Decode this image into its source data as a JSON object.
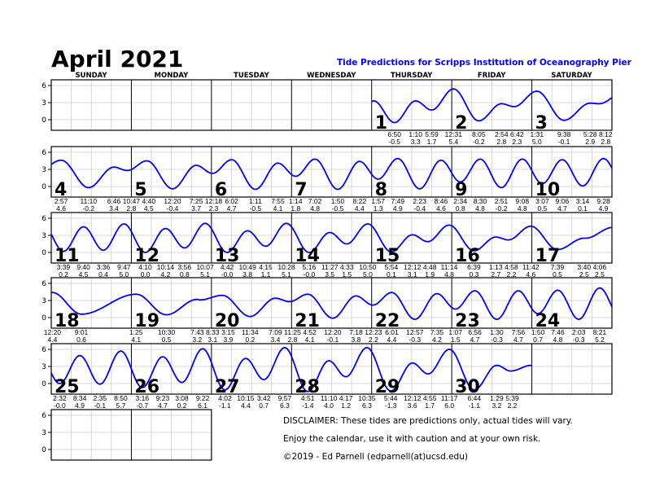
{
  "calendar": {
    "title": "April 2021",
    "subtitle": "Tide Predictions for Scripps Institution of Oceanography Pier",
    "subtitle_color": "#0000ff"
  },
  "weekdays": [
    "SUNDAY",
    "MONDAY",
    "TUESDAY",
    "WEDNESDAY",
    "THURSDAY",
    "FRIDAY",
    "SATURDAY"
  ],
  "disclaimer": [
    "DISCLAIMER: These tides are predictions only, actual tides will vary.",
    "Enjoy the calendar, use it with caution and at your own risk.",
    "©2019 - Ed Parnell (edparnell(at)ucsd.edu)"
  ],
  "chart_data": {
    "type": "line",
    "ylabel": "",
    "yticks": [
      "6",
      "3",
      "0"
    ],
    "ylim": [
      -1.6,
      7
    ],
    "line_color": "#0000ff",
    "grid": true,
    "first_weekday": "THURSDAY",
    "days": [
      {
        "day": "1",
        "tides": [
          [
            "6:50",
            "-0.5"
          ],
          [
            "1:10",
            "3.3"
          ],
          [
            "5:59",
            "1.7"
          ]
        ]
      },
      {
        "day": "2",
        "tides": [
          [
            "12:31",
            "5.4"
          ],
          [
            "8:05",
            "-0.2"
          ],
          [
            "2:54",
            "2.8"
          ],
          [
            "6:42",
            "2.3"
          ]
        ]
      },
      {
        "day": "3",
        "tides": [
          [
            "1:31",
            "5.0"
          ],
          [
            "9:38",
            "-0.1"
          ],
          [
            "5:28",
            "2.9"
          ],
          [
            "8:12",
            "2.8"
          ]
        ]
      },
      {
        "day": "4",
        "tides": [
          [
            "2:57",
            "4.6"
          ],
          [
            "11:10",
            "-0.2"
          ],
          [
            "6:46",
            "3.4"
          ],
          [
            "10:47",
            "2.8"
          ]
        ]
      },
      {
        "day": "5",
        "tides": [
          [
            "4:40",
            "4.5"
          ],
          [
            "12:20",
            "-0.4"
          ],
          [
            "7:25",
            "3.7"
          ]
        ]
      },
      {
        "day": "6",
        "tides": [
          [
            "12:18",
            "2.3"
          ],
          [
            "6:02",
            "4.7"
          ],
          [
            "1:11",
            "-0.5"
          ],
          [
            "7:55",
            "4.1"
          ]
        ]
      },
      {
        "day": "7",
        "tides": [
          [
            "1:14",
            "1.8"
          ],
          [
            "7:02",
            "4.8"
          ],
          [
            "1:50",
            "-0.5"
          ],
          [
            "8:22",
            "4.4"
          ]
        ]
      },
      {
        "day": "8",
        "tides": [
          [
            "1:57",
            "1.3"
          ],
          [
            "7:49",
            "4.9"
          ],
          [
            "2:23",
            "-0.4"
          ],
          [
            "8:46",
            "4.6"
          ]
        ]
      },
      {
        "day": "9",
        "tides": [
          [
            "2:34",
            "0.8"
          ],
          [
            "8:30",
            "4.8"
          ],
          [
            "2:51",
            "-0.2"
          ],
          [
            "9:08",
            "4.8"
          ]
        ]
      },
      {
        "day": "10",
        "tides": [
          [
            "3:07",
            "0.5"
          ],
          [
            "9:06",
            "4.7"
          ],
          [
            "3:14",
            "0.1"
          ],
          [
            "9:28",
            "4.9"
          ]
        ]
      },
      {
        "day": "11",
        "tides": [
          [
            "3:39",
            "0.2"
          ],
          [
            "9:40",
            "4.5"
          ],
          [
            "3:36",
            "0.4"
          ],
          [
            "9:47",
            "5.0"
          ]
        ]
      },
      {
        "day": "12",
        "tides": [
          [
            "4:10",
            "0.0"
          ],
          [
            "10:14",
            "4.2"
          ],
          [
            "3:56",
            "0.8"
          ],
          [
            "10:07",
            "5.1"
          ]
        ]
      },
      {
        "day": "13",
        "tides": [
          [
            "4:42",
            "-0.0"
          ],
          [
            "10:49",
            "3.8"
          ],
          [
            "4:15",
            "1.1"
          ],
          [
            "10:28",
            "5.1"
          ]
        ]
      },
      {
        "day": "14",
        "tides": [
          [
            "5:16",
            "-0.0"
          ],
          [
            "11:27",
            "3.5"
          ],
          [
            "4:33",
            "1.5"
          ],
          [
            "10:50",
            "5.0"
          ]
        ]
      },
      {
        "day": "15",
        "tides": [
          [
            "5:54",
            "0.1"
          ],
          [
            "12:12",
            "3.1"
          ],
          [
            "4:48",
            "1.9"
          ],
          [
            "11:14",
            "4.8"
          ]
        ]
      },
      {
        "day": "16",
        "tides": [
          [
            "6:39",
            "0.3"
          ],
          [
            "1:13",
            "2.7"
          ],
          [
            "4:58",
            "2.2"
          ],
          [
            "11:42",
            "4.6"
          ]
        ]
      },
      {
        "day": "17",
        "tides": [
          [
            "7:39",
            "0.5"
          ],
          [
            "3:40",
            "2.5"
          ],
          [
            "4:06",
            "2.5"
          ]
        ]
      },
      {
        "day": "18",
        "tides": [
          [
            "12:20",
            "4.4"
          ],
          [
            "9:01",
            "0.6"
          ]
        ]
      },
      {
        "day": "19",
        "tides": [
          [
            "1:25",
            "4.1"
          ],
          [
            "10:30",
            "0.5"
          ],
          [
            "7:43",
            "3.2"
          ],
          [
            "8:33",
            "3.1"
          ]
        ]
      },
      {
        "day": "20",
        "tides": [
          [
            "3:15",
            "3.9"
          ],
          [
            "11:34",
            "0.2"
          ],
          [
            "7:09",
            "3.4"
          ],
          [
            "11:25",
            "2.8"
          ]
        ]
      },
      {
        "day": "21",
        "tides": [
          [
            "4:52",
            "4.1"
          ],
          [
            "12:20",
            "-0.1"
          ],
          [
            "7:18",
            "3.8"
          ]
        ]
      },
      {
        "day": "22",
        "tides": [
          [
            "12:23",
            "2.2"
          ],
          [
            "6:01",
            "4.4"
          ],
          [
            "12:57",
            "-0.3"
          ],
          [
            "7:35",
            "4.2"
          ]
        ]
      },
      {
        "day": "23",
        "tides": [
          [
            "1:07",
            "1.5"
          ],
          [
            "6:56",
            "4.7"
          ],
          [
            "1:30",
            "-0.3"
          ],
          [
            "7:56",
            "4.7"
          ]
        ]
      },
      {
        "day": "24",
        "tides": [
          [
            "1:50",
            "0.7"
          ],
          [
            "7:46",
            "4.8"
          ],
          [
            "2:03",
            "-0.3"
          ],
          [
            "8:21",
            "5.2"
          ]
        ]
      },
      {
        "day": "25",
        "tides": [
          [
            "2:32",
            "-0.0"
          ],
          [
            "8:34",
            "4.9"
          ],
          [
            "2:35",
            "-0.1"
          ],
          [
            "8:50",
            "5.7"
          ]
        ]
      },
      {
        "day": "26",
        "tides": [
          [
            "3:16",
            "-0.7"
          ],
          [
            "9:23",
            "4.7"
          ],
          [
            "3:08",
            "0.2"
          ],
          [
            "9:22",
            "6.1"
          ]
        ]
      },
      {
        "day": "27",
        "tides": [
          [
            "4:02",
            "-1.1"
          ],
          [
            "10:15",
            "4.4"
          ],
          [
            "3:42",
            "0.7"
          ],
          [
            "9:57",
            "6.3"
          ]
        ]
      },
      {
        "day": "28",
        "tides": [
          [
            "4:51",
            "-1.4"
          ],
          [
            "11:10",
            "4.0"
          ],
          [
            "4:17",
            "1.2"
          ],
          [
            "10:35",
            "6.3"
          ]
        ]
      },
      {
        "day": "29",
        "tides": [
          [
            "5:44",
            "-1.3"
          ],
          [
            "12:12",
            "3.6"
          ],
          [
            "4:55",
            "1.7"
          ],
          [
            "11:17",
            "6.0"
          ]
        ]
      },
      {
        "day": "30",
        "tides": [
          [
            "6:44",
            "-1.1"
          ],
          [
            "1:29",
            "3.2"
          ],
          [
            "5:39",
            "2.2"
          ]
        ]
      }
    ]
  }
}
